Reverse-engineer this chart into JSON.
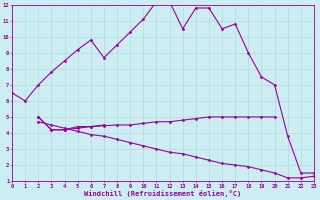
{
  "xlabel": "Windchill (Refroidissement éolien,°C)",
  "bg_color": "#cceef2",
  "grid_color": "#aad8dc",
  "line_color": "#990099",
  "xlim": [
    0,
    23
  ],
  "ylim": [
    1,
    12
  ],
  "xticks": [
    0,
    1,
    2,
    3,
    4,
    5,
    6,
    7,
    8,
    9,
    10,
    11,
    12,
    13,
    14,
    15,
    16,
    17,
    18,
    19,
    20,
    21,
    22,
    23
  ],
  "yticks": [
    1,
    2,
    3,
    4,
    5,
    6,
    7,
    8,
    9,
    10,
    11,
    12
  ],
  "curve_main_x": [
    0,
    1,
    2,
    3,
    4,
    5,
    6,
    7,
    8,
    9,
    10,
    11,
    12,
    13,
    14,
    15,
    16,
    17,
    18,
    19,
    20,
    21,
    22,
    23
  ],
  "curve_main_y": [
    6.5,
    6.0,
    7.0,
    7.8,
    8.5,
    9.2,
    9.8,
    8.7,
    9.5,
    10.3,
    11.1,
    12.2,
    12.2,
    10.5,
    11.8,
    11.8,
    10.5,
    10.8,
    9.0,
    7.5,
    7.0,
    3.8,
    1.5,
    1.5
  ],
  "curve_flat_x": [
    2,
    3,
    4,
    5,
    6,
    7,
    8,
    9,
    10,
    11,
    12,
    13,
    14,
    15,
    16,
    17,
    18,
    19,
    20
  ],
  "curve_flat_y": [
    5.0,
    4.2,
    4.2,
    4.4,
    4.4,
    4.45,
    4.5,
    4.5,
    4.6,
    4.7,
    4.7,
    4.8,
    4.9,
    5.0,
    5.0,
    5.0,
    5.0,
    5.0,
    5.0
  ],
  "curve_diag_x": [
    2,
    3,
    4,
    5,
    6,
    7,
    8,
    9,
    10,
    11,
    12,
    13,
    14,
    15,
    16,
    17,
    18,
    19,
    20,
    21,
    22,
    23
  ],
  "curve_diag_y": [
    4.7,
    4.5,
    4.3,
    4.1,
    3.9,
    3.8,
    3.6,
    3.4,
    3.2,
    3.0,
    2.8,
    2.7,
    2.5,
    2.3,
    2.1,
    2.0,
    1.9,
    1.7,
    1.5,
    1.2,
    1.2,
    1.3
  ],
  "curve_small_x": [
    2,
    3,
    4,
    5,
    6,
    7
  ],
  "curve_small_y": [
    5.0,
    4.2,
    4.2,
    4.3,
    4.4,
    4.5
  ]
}
